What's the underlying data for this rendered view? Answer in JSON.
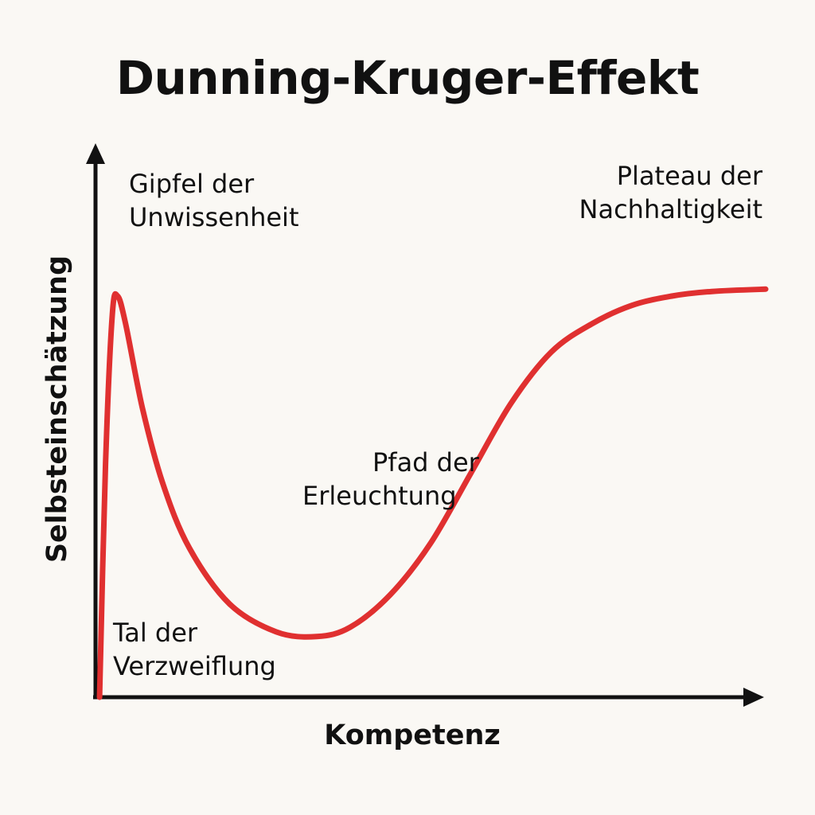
{
  "chart_data": {
    "type": "line",
    "title": "Dunning-Kruger-Effekt",
    "xlabel": "Kompetenz",
    "ylabel": "Selbsteinschätzung",
    "xlim": [
      0,
      100
    ],
    "ylim": [
      0,
      100
    ],
    "grid": false,
    "series_color": "#e03030",
    "axis_color": "#111111",
    "series": [
      {
        "x": [
          0.6,
          1.5,
          2.5,
          3.3,
          4.5,
          7,
          10,
          14,
          20,
          27,
          33,
          38,
          44,
          50,
          56,
          62,
          68,
          74,
          80,
          86,
          92,
          100
        ],
        "y": [
          0,
          50,
          82,
          86,
          80,
          62,
          46,
          32,
          20,
          14,
          13,
          15,
          22,
          33,
          48,
          63,
          74,
          80,
          84,
          86,
          87,
          87.5
        ]
      }
    ],
    "annotations": [
      {
        "id": "peak",
        "lines": [
          "Gipfel der",
          "Unwissenheit"
        ]
      },
      {
        "id": "valley",
        "lines": [
          "Tal der",
          "Verzweiflung"
        ]
      },
      {
        "id": "slope",
        "lines": [
          "Pfad der",
          "Erleuchtung"
        ]
      },
      {
        "id": "plateau",
        "lines": [
          "Plateau der",
          "Nachhaltigkeit"
        ]
      }
    ]
  }
}
